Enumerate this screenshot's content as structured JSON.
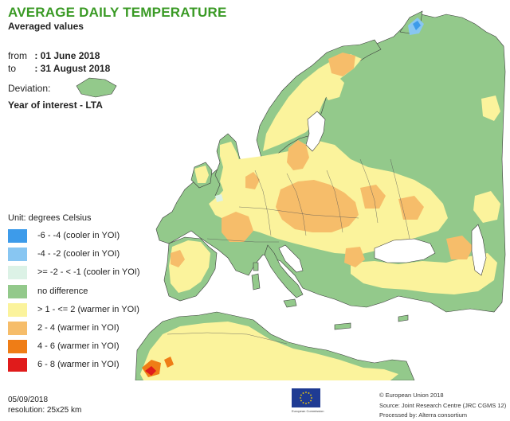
{
  "title": "AVERAGE DAILY TEMPERATURE",
  "subtitle": "Averaged values",
  "period": {
    "from_label": "from",
    "from_value": ": 01 June 2018",
    "to_label": "to",
    "to_value": ": 31 August 2018"
  },
  "deviation_label": "Deviation:",
  "deviation_value": "Year of interest - LTA",
  "legend": {
    "unit": "Unit: degrees Celsius",
    "items": [
      {
        "label": "-6 - -4 (cooler in YOI)",
        "color": "#3d9bea"
      },
      {
        "label": "-4 - -2 (cooler in YOI)",
        "color": "#88c6f2"
      },
      {
        "label": ">= -2 - < -1 (cooler in YOI)",
        "color": "#dcf2e6"
      },
      {
        "label": "no difference",
        "color": "#93c98b"
      },
      {
        "label": "> 1 - <= 2 (warmer in YOI)",
        "color": "#fbf39c"
      },
      {
        "label": "2 - 4 (warmer in YOI)",
        "color": "#f6bd6a"
      },
      {
        "label": "4 - 6 (warmer in YOI)",
        "color": "#ef7d16"
      },
      {
        "label": "6 - 8 (warmer in YOI)",
        "color": "#e01b1b"
      }
    ]
  },
  "sea_color": "#ffffff",
  "footer": {
    "date": "05/09/2018",
    "resolution": "resolution: 25x25 km",
    "copyright": "© European Union 2018",
    "source": "Source: Joint Research Centre (JRC CGMS 12)",
    "processed": "Processed by: Alterra consortium",
    "logo_caption": "European Commission"
  }
}
